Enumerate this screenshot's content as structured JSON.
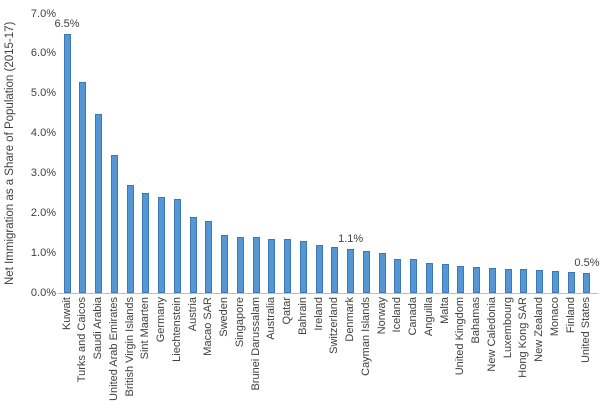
{
  "chart_data": {
    "type": "bar",
    "title": "",
    "xlabel": "",
    "ylabel": "Net Immigration as a Share of Population (2015-17)",
    "ylim": [
      0,
      7
    ],
    "y_tick_labels": [
      "0.0%",
      "1.0%",
      "2.0%",
      "3.0%",
      "4.0%",
      "5.0%",
      "6.0%",
      "7.0%"
    ],
    "grid": false,
    "legend_position": "none",
    "categories": [
      "Kuwait",
      "Turks and Caicos",
      "Saudi Arabia",
      "United Arab Emirates",
      "British Virgin Islands",
      "Sint Maarten",
      "Germany",
      "Liechtenstein",
      "Austria",
      "Macao SAR",
      "Sweden",
      "Singapore",
      "Brunei Darussalam",
      "Australia",
      "Qatar",
      "Bahrain",
      "Ireland",
      "Switzerland",
      "Denmark",
      "Cayman Islands",
      "Norway",
      "Iceland",
      "Canada",
      "Anguilla",
      "Malta",
      "United Kingdom",
      "Bahamas",
      "New Caledonia",
      "Luxembourg",
      "Hong Kong SAR",
      "New Zealand",
      "Monaco",
      "Finland",
      "United States"
    ],
    "values": [
      6.5,
      5.3,
      4.5,
      3.45,
      2.7,
      2.5,
      2.4,
      2.35,
      1.9,
      1.8,
      1.45,
      1.4,
      1.4,
      1.35,
      1.35,
      1.3,
      1.2,
      1.15,
      1.1,
      1.05,
      1.0,
      0.85,
      0.85,
      0.75,
      0.72,
      0.68,
      0.65,
      0.63,
      0.6,
      0.6,
      0.58,
      0.55,
      0.53,
      0.5
    ],
    "annotations": [
      {
        "category": "Kuwait",
        "text": "6.5%"
      },
      {
        "category": "Denmark",
        "text": "1.1%"
      },
      {
        "category": "United States",
        "text": "0.5%"
      }
    ],
    "colors": {
      "bar_fill": "#5596D5",
      "bar_border": "#3C78B3",
      "axis_line": "#BFBFBF",
      "text": "#404040"
    }
  }
}
